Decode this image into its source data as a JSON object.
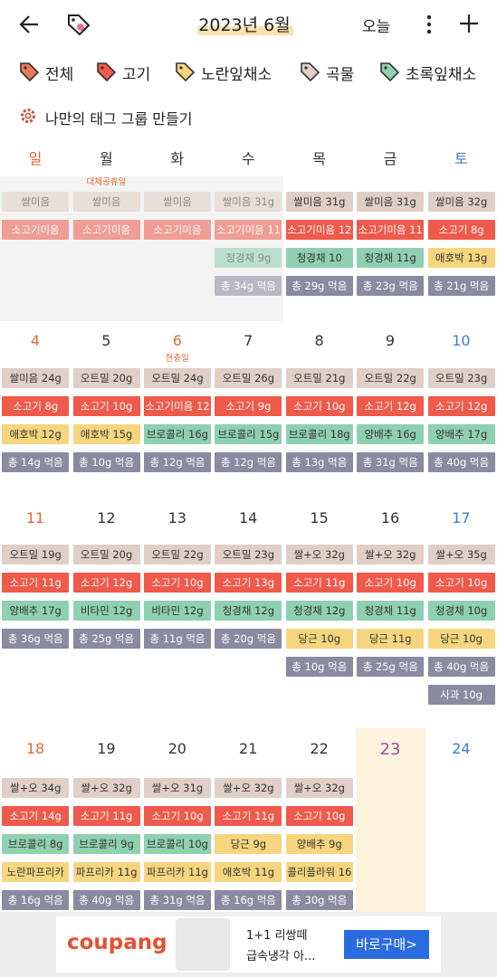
{
  "header": {
    "title": "2023년 6월",
    "today": "오늘"
  },
  "tags": [
    {
      "label": "전체",
      "color": "#e87a5a"
    },
    {
      "label": "고기",
      "color": "#ef5a4a"
    },
    {
      "label": "노란잎채소",
      "color": "#f5d57e"
    },
    {
      "label": "곡물",
      "color": "#e0cfc6"
    },
    {
      "label": "초록잎채소",
      "color": "#8fd0b0"
    }
  ],
  "make_group": "나만의 태그 그룹 만들기",
  "weekdays": [
    {
      "label": "일",
      "color": "#e06a30"
    },
    {
      "label": "월",
      "color": "#333333"
    },
    {
      "label": "화",
      "color": "#333333"
    },
    {
      "label": "수",
      "color": "#333333"
    },
    {
      "label": "목",
      "color": "#333333"
    },
    {
      "label": "금",
      "color": "#333333"
    },
    {
      "label": "토",
      "color": "#3a82c8"
    }
  ],
  "weeks": [
    {
      "days": [
        {
          "dim": true,
          "entries": [
            {
              "text": "쌀미음",
              "color": "#e0cfc6"
            },
            {
              "text": "소고기미음",
              "color": "#ef5a4a"
            }
          ]
        },
        {
          "dim": true,
          "holiday": "대체공휴일",
          "entries": [
            {
              "text": "쌀미음",
              "color": "#e0cfc6"
            },
            {
              "text": "소고기미음",
              "color": "#ef5a4a"
            }
          ]
        },
        {
          "dim": true,
          "entries": [
            {
              "text": "쌀미음",
              "color": "#e0cfc6"
            },
            {
              "text": "소고기미음",
              "color": "#ef5a4a"
            }
          ]
        },
        {
          "dim": true,
          "entries": [
            {
              "text": "쌀미음 31g",
              "color": "#e0cfc6"
            },
            {
              "text": "소고기미음 11",
              "color": "#ef5a4a"
            },
            {
              "text": "청경채 9g",
              "color": "#8fd0b0"
            },
            {
              "text": "총 34g 먹음",
              "color": "#8a8aa0"
            }
          ]
        },
        {
          "entries": [
            {
              "text": "쌀미음 31g",
              "color": "#e0cfc6"
            },
            {
              "text": "소고기미음 12",
              "color": "#ef5a4a"
            },
            {
              "text": "청경채 10",
              "color": "#8fd0b0"
            },
            {
              "text": "총 29g 먹음",
              "color": "#8a8aa0"
            }
          ]
        },
        {
          "entries": [
            {
              "text": "쌀미음 31g",
              "color": "#e0cfc6"
            },
            {
              "text": "소고기미음 11",
              "color": "#ef5a4a"
            },
            {
              "text": "청경채 11g",
              "color": "#8fd0b0"
            },
            {
              "text": "총 23g 먹음",
              "color": "#8a8aa0"
            }
          ]
        },
        {
          "entries": [
            {
              "text": "쌀미음 32g",
              "color": "#e0cfc6"
            },
            {
              "text": "소고기 8g",
              "color": "#ef5a4a"
            },
            {
              "text": "애호박 13g",
              "color": "#f5d57e"
            },
            {
              "text": "총 21g 먹음",
              "color": "#8a8aa0"
            }
          ]
        }
      ]
    },
    {
      "days": [
        {
          "date": "4",
          "entries": [
            {
              "text": "쌀미음 24g",
              "color": "#e0cfc6"
            },
            {
              "text": "소고기 8g",
              "color": "#ef5a4a"
            },
            {
              "text": "애호박 12g",
              "color": "#f5d57e"
            },
            {
              "text": "총 14g 먹음",
              "color": "#8a8aa0"
            }
          ]
        },
        {
          "date": "5",
          "entries": [
            {
              "text": "오트밀 20g",
              "color": "#e0cfc6"
            },
            {
              "text": "소고기 10g",
              "color": "#ef5a4a"
            },
            {
              "text": "애호박 15g",
              "color": "#f5d57e"
            },
            {
              "text": "총 10g 먹음",
              "color": "#8a8aa0"
            }
          ]
        },
        {
          "date": "6",
          "color": "#e06a30",
          "holiday": "현충일",
          "entries": [
            {
              "text": "오트밀 24g",
              "color": "#e0cfc6"
            },
            {
              "text": "소고기미음 12",
              "color": "#ef5a4a"
            },
            {
              "text": "브로콜리 16g",
              "color": "#8fd0b0"
            },
            {
              "text": "총 12g 먹음",
              "color": "#8a8aa0"
            }
          ]
        },
        {
          "date": "7",
          "entries": [
            {
              "text": "오트밀 26g",
              "color": "#e0cfc6"
            },
            {
              "text": "소고기 9g",
              "color": "#ef5a4a"
            },
            {
              "text": "브로콜리 15g",
              "color": "#8fd0b0"
            },
            {
              "text": "총 12g 먹음",
              "color": "#8a8aa0"
            }
          ]
        },
        {
          "date": "8",
          "entries": [
            {
              "text": "오트밀 21g",
              "color": "#e0cfc6"
            },
            {
              "text": "소고기 10g",
              "color": "#ef5a4a"
            },
            {
              "text": "브로콜리 18g",
              "color": "#8fd0b0"
            },
            {
              "text": "총 13g 먹음",
              "color": "#8a8aa0"
            }
          ]
        },
        {
          "date": "9",
          "entries": [
            {
              "text": "오트밀 22g",
              "color": "#e0cfc6"
            },
            {
              "text": "소고기 12g",
              "color": "#ef5a4a"
            },
            {
              "text": "양배추 16g",
              "color": "#8fd0b0"
            },
            {
              "text": "총 31g 먹음",
              "color": "#8a8aa0"
            }
          ]
        },
        {
          "date": "10",
          "entries": [
            {
              "text": "오트밀 23g",
              "color": "#e0cfc6"
            },
            {
              "text": "소고기 12g",
              "color": "#ef5a4a"
            },
            {
              "text": "양배추 17g",
              "color": "#8fd0b0"
            },
            {
              "text": "총 40g 먹음",
              "color": "#8a8aa0"
            }
          ]
        }
      ]
    },
    {
      "days": [
        {
          "date": "11",
          "entries": [
            {
              "text": "오트밀 19g",
              "color": "#e0cfc6"
            },
            {
              "text": "소고기 11g",
              "color": "#ef5a4a"
            },
            {
              "text": "양배추 17g",
              "color": "#8fd0b0"
            },
            {
              "text": "총 36g 먹음",
              "color": "#8a8aa0"
            }
          ]
        },
        {
          "date": "12",
          "entries": [
            {
              "text": "오트밀 20g",
              "color": "#e0cfc6"
            },
            {
              "text": "소고기 12g",
              "color": "#ef5a4a"
            },
            {
              "text": "비타민 12g",
              "color": "#8fd0b0"
            },
            {
              "text": "총 25g 먹음",
              "color": "#8a8aa0"
            }
          ]
        },
        {
          "date": "13",
          "entries": [
            {
              "text": "오트밀 22g",
              "color": "#e0cfc6"
            },
            {
              "text": "소고기 10g",
              "color": "#ef5a4a"
            },
            {
              "text": "비타민 12g",
              "color": "#8fd0b0"
            },
            {
              "text": "총 11g 먹음",
              "color": "#8a8aa0"
            }
          ]
        },
        {
          "date": "14",
          "entries": [
            {
              "text": "오트밀 23g",
              "color": "#e0cfc6"
            },
            {
              "text": "소고기 13g",
              "color": "#ef5a4a"
            },
            {
              "text": "청경채 12g",
              "color": "#8fd0b0"
            },
            {
              "text": "총 20g 먹음",
              "color": "#8a8aa0"
            }
          ]
        },
        {
          "date": "15",
          "entries": [
            {
              "text": "쌀+오 32g",
              "color": "#e0cfc6"
            },
            {
              "text": "소고기 11g",
              "color": "#ef5a4a"
            },
            {
              "text": "청경채 12g",
              "color": "#8fd0b0"
            },
            {
              "text": "당근 10g",
              "color": "#f5d57e"
            },
            {
              "text": "총 10g 먹음",
              "color": "#8a8aa0"
            }
          ]
        },
        {
          "date": "16",
          "entries": [
            {
              "text": "쌀+오 32g",
              "color": "#e0cfc6"
            },
            {
              "text": "소고기 10g",
              "color": "#ef5a4a"
            },
            {
              "text": "청경채 11g",
              "color": "#8fd0b0"
            },
            {
              "text": "당근 11g",
              "color": "#f5d57e"
            },
            {
              "text": "총 25g 먹음",
              "color": "#8a8aa0"
            }
          ]
        },
        {
          "date": "17",
          "entries": [
            {
              "text": "쌀+오 35g",
              "color": "#e0cfc6"
            },
            {
              "text": "소고기 10g",
              "color": "#ef5a4a"
            },
            {
              "text": "청경채 10g",
              "color": "#8fd0b0"
            },
            {
              "text": "당근 10g",
              "color": "#f5d57e"
            },
            {
              "text": "총 40g 먹음",
              "color": "#8a8aa0"
            },
            {
              "text": "사과 10g",
              "color": "#8a8aa0"
            }
          ]
        }
      ]
    },
    {
      "days": [
        {
          "date": "18",
          "entries": [
            {
              "text": "쌀+오 34g",
              "color": "#e0cfc6"
            },
            {
              "text": "소고기 14g",
              "color": "#ef5a4a"
            },
            {
              "text": "브로콜리 8g",
              "color": "#8fd0b0"
            },
            {
              "text": "노란파프리카",
              "color": "#f5d57e"
            },
            {
              "text": "총 16g 먹음",
              "color": "#8a8aa0"
            }
          ]
        },
        {
          "date": "19",
          "entries": [
            {
              "text": "쌀+오 32g",
              "color": "#e0cfc6"
            },
            {
              "text": "소고기 11g",
              "color": "#ef5a4a"
            },
            {
              "text": "브로콜리 9g",
              "color": "#8fd0b0"
            },
            {
              "text": "파프리카 11g",
              "color": "#f5d57e"
            },
            {
              "text": "총 40g 먹음",
              "color": "#8a8aa0"
            }
          ]
        },
        {
          "date": "20",
          "entries": [
            {
              "text": "쌀+오 31g",
              "color": "#e0cfc6"
            },
            {
              "text": "소고기 10g",
              "color": "#ef5a4a"
            },
            {
              "text": "브로콜리 10g",
              "color": "#8fd0b0"
            },
            {
              "text": "파프리카 11g",
              "color": "#f5d57e"
            },
            {
              "text": "총 31g 먹음",
              "color": "#8a8aa0"
            }
          ]
        },
        {
          "date": "21",
          "entries": [
            {
              "text": "쌀+오 32g",
              "color": "#e0cfc6"
            },
            {
              "text": "소고기 11g",
              "color": "#ef5a4a"
            },
            {
              "text": "당근 9g",
              "color": "#f5d57e"
            },
            {
              "text": "애호박 11g",
              "color": "#f5d57e"
            },
            {
              "text": "총 16g 먹음",
              "color": "#8a8aa0"
            }
          ]
        },
        {
          "date": "22",
          "entries": [
            {
              "text": "쌀+오 32g",
              "color": "#e0cfc6"
            },
            {
              "text": "소고기 10g",
              "color": "#ef5a4a"
            },
            {
              "text": "양배추 9g",
              "color": "#f5d57e"
            },
            {
              "text": "콜리플라워 16",
              "color": "#f5d57e"
            },
            {
              "text": "총 30g 먹음",
              "color": "#8a8aa0"
            }
          ]
        },
        {
          "date": "23",
          "color": "#a04aa8",
          "today": true,
          "entries": []
        },
        {
          "date": "24",
          "entries": []
        }
      ]
    }
  ],
  "ad": {
    "brand": "coupang",
    "line1": "1+1 리쌍떼",
    "line2": "급속냉각 아...",
    "button": "바로구매>"
  }
}
